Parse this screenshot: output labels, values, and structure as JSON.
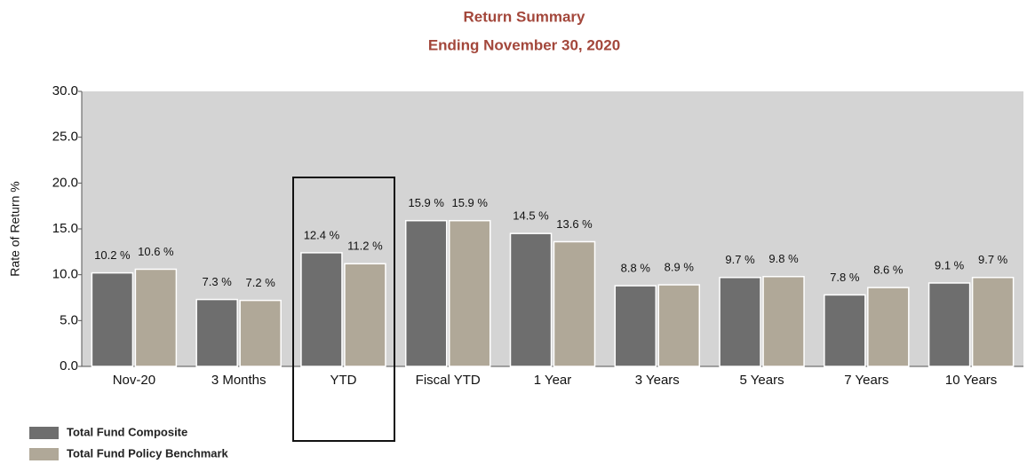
{
  "chart_data": {
    "type": "bar",
    "title": "Return Summary",
    "subtitle": "Ending November 30, 2020",
    "y_label": "Rate of Return %",
    "categories": [
      "Nov-20",
      "3 Months",
      "YTD",
      "Fiscal YTD",
      "1 Year",
      "3 Years",
      "5 Years",
      "7 Years",
      "10 Years"
    ],
    "series": [
      {
        "name": "Total Fund Composite",
        "color": "#6e6e6e",
        "values": [
          10.2,
          7.3,
          12.4,
          15.9,
          14.5,
          8.8,
          9.7,
          7.8,
          9.1
        ],
        "value_labels": [
          "10.2 %",
          "7.3 %",
          "12.4 %",
          "15.9 %",
          "14.5 %",
          "8.8 %",
          "9.7 %",
          "7.8 %",
          "9.1 %"
        ]
      },
      {
        "name": "Total Fund Policy Benchmark",
        "color": "#b0a898",
        "values": [
          10.6,
          7.2,
          11.2,
          15.9,
          13.6,
          8.9,
          9.8,
          8.6,
          9.7
        ],
        "value_labels": [
          "10.6 %",
          "7.2 %",
          "11.2 %",
          "15.9 %",
          "13.6 %",
          "8.9 %",
          "9.8 %",
          "8.6 %",
          "9.7 %"
        ]
      }
    ],
    "ylim": [
      0,
      30
    ],
    "yticks": [
      {
        "value": 0,
        "label": "0.0"
      },
      {
        "value": 5,
        "label": "5.0"
      },
      {
        "value": 10,
        "label": "10.0"
      },
      {
        "value": 15,
        "label": "15.0"
      },
      {
        "value": 20,
        "label": "20.0"
      },
      {
        "value": 25,
        "label": "25.0"
      },
      {
        "value": 30,
        "label": "30.0"
      }
    ],
    "grid": false,
    "legend": "bottom-left"
  }
}
